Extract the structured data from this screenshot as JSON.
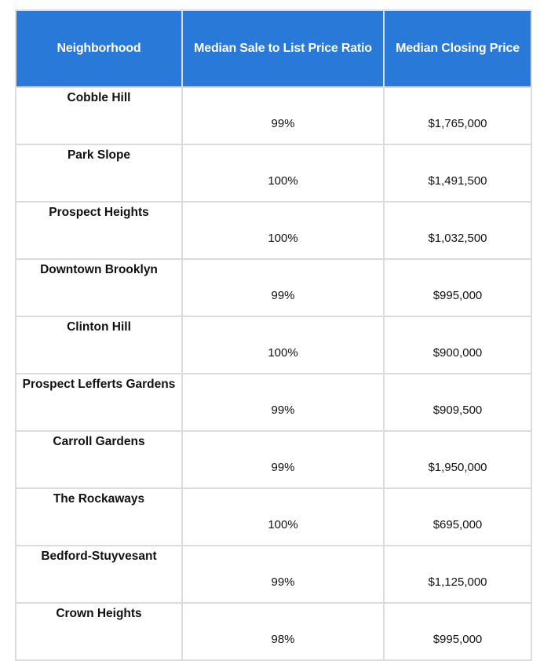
{
  "table": {
    "headers": [
      "Neighborhood",
      "Median Sale to List Price Ratio",
      "Median Closing Price"
    ],
    "rows": [
      {
        "neighborhood": "Cobble Hill",
        "ratio": "99%",
        "price": "$1,765,000"
      },
      {
        "neighborhood": "Park Slope",
        "ratio": "100%",
        "price": "$1,491,500"
      },
      {
        "neighborhood": "Prospect Heights",
        "ratio": "100%",
        "price": "$1,032,500"
      },
      {
        "neighborhood": "Downtown Brooklyn",
        "ratio": "99%",
        "price": "$995,000"
      },
      {
        "neighborhood": "Clinton Hill",
        "ratio": "100%",
        "price": "$900,000"
      },
      {
        "neighborhood": "Prospect Lefferts Gardens",
        "ratio": "99%",
        "price": "$909,500"
      },
      {
        "neighborhood": "Carroll Gardens",
        "ratio": "99%",
        "price": "$1,950,000"
      },
      {
        "neighborhood": "The Rockaways",
        "ratio": "100%",
        "price": "$695,000"
      },
      {
        "neighborhood": "Bedford-Stuyvesant",
        "ratio": "99%",
        "price": "$1,125,000"
      },
      {
        "neighborhood": "Crown Heights",
        "ratio": "98%",
        "price": "$995,000"
      }
    ]
  },
  "colors": {
    "header_bg": "#2979d9",
    "header_text": "#ffffff",
    "border": "#dcdcdc"
  }
}
